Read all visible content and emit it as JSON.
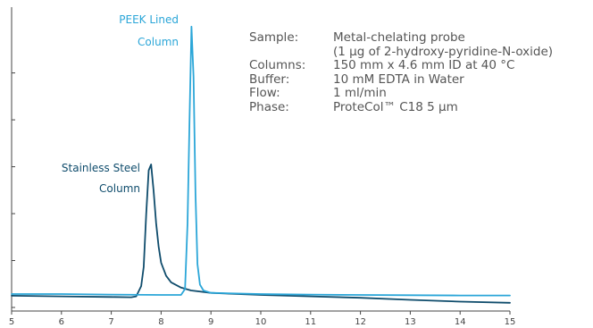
{
  "chart_data": {
    "type": "line",
    "title": "",
    "xlabel": "",
    "ylabel": "",
    "xlim": [
      5,
      15
    ],
    "ylim": [
      0,
      1
    ],
    "x_ticks": [
      "5",
      "6",
      "7",
      "8",
      "9",
      "10",
      "11",
      "12",
      "13",
      "14",
      "15"
    ],
    "grid": false,
    "series": [
      {
        "key": "stainless",
        "color": "#0f4c6c",
        "points": [
          [
            5.0,
            0.052
          ],
          [
            6.0,
            0.05
          ],
          [
            7.0,
            0.048
          ],
          [
            7.4,
            0.047
          ],
          [
            7.5,
            0.05
          ],
          [
            7.6,
            0.085
          ],
          [
            7.65,
            0.15
          ],
          [
            7.7,
            0.33
          ],
          [
            7.75,
            0.48
          ],
          [
            7.8,
            0.5
          ],
          [
            7.85,
            0.41
          ],
          [
            7.9,
            0.3
          ],
          [
            7.95,
            0.22
          ],
          [
            8.0,
            0.165
          ],
          [
            8.1,
            0.12
          ],
          [
            8.2,
            0.098
          ],
          [
            8.4,
            0.08
          ],
          [
            8.6,
            0.07
          ],
          [
            9.0,
            0.062
          ],
          [
            10.0,
            0.055
          ],
          [
            11.0,
            0.05
          ],
          [
            12.0,
            0.045
          ],
          [
            13.0,
            0.038
          ],
          [
            14.0,
            0.032
          ],
          [
            15.0,
            0.028
          ]
        ]
      },
      {
        "key": "peek",
        "color": "#2ba6d8",
        "points": [
          [
            5.0,
            0.058
          ],
          [
            6.0,
            0.058
          ],
          [
            7.0,
            0.056
          ],
          [
            8.0,
            0.055
          ],
          [
            8.4,
            0.055
          ],
          [
            8.48,
            0.075
          ],
          [
            8.53,
            0.3
          ],
          [
            8.57,
            0.65
          ],
          [
            8.61,
            0.97
          ],
          [
            8.65,
            0.8
          ],
          [
            8.69,
            0.4
          ],
          [
            8.73,
            0.16
          ],
          [
            8.78,
            0.09
          ],
          [
            8.85,
            0.07
          ],
          [
            9.0,
            0.062
          ],
          [
            10.0,
            0.058
          ],
          [
            11.0,
            0.056
          ],
          [
            12.0,
            0.055
          ],
          [
            13.0,
            0.054
          ],
          [
            14.0,
            0.053
          ],
          [
            15.0,
            0.053
          ]
        ]
      }
    ],
    "annotations": {
      "peek_line1": "PEEK Lined",
      "peek_line2": "Column",
      "stainless_line1": "Stainless Steel",
      "stainless_line2": "Column"
    }
  },
  "info_block": {
    "rows": [
      {
        "key": "Sample:",
        "value": "Metal-chelating probe"
      },
      {
        "key": "",
        "value": "(1 µg of 2-hydroxy-pyridine-N-oxide)"
      },
      {
        "key": "Columns:",
        "value": "150 mm x 4.6 mm ID at 40 °C"
      },
      {
        "key": "Buffer:",
        "value": "10 mM EDTA in Water"
      },
      {
        "key": "Flow:",
        "value": "1 ml/min"
      },
      {
        "key": "Phase:",
        "value": "ProteCol™ C18 5 µm"
      }
    ]
  },
  "colors": {
    "axis": "#444444",
    "peek": "#2ba6d8",
    "stainless": "#0f4c6c",
    "info_text": "#555555"
  }
}
